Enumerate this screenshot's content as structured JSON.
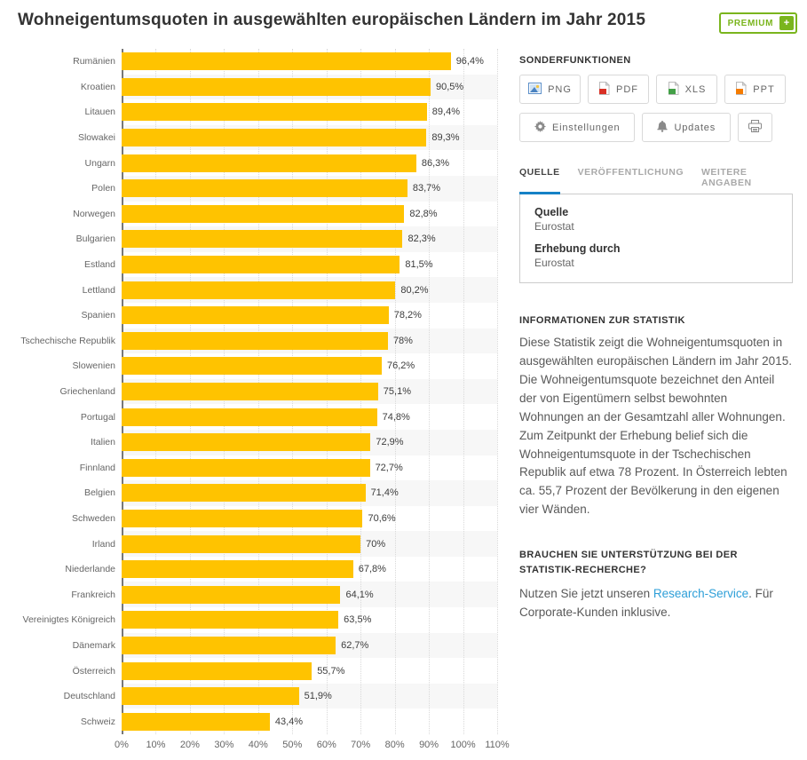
{
  "page": {
    "title": "Wohneigentumsquoten in ausgewählten europäischen Ländern im Jahr 2015",
    "premium_label": "PREMIUM",
    "premium_plus": "+"
  },
  "colors": {
    "bar": "#ffc300",
    "premium_green": "#7ab51d",
    "tab_active_underline": "#1581c6",
    "link_blue": "#2e9fd8"
  },
  "sidebar": {
    "features_header": "SONDERFUNKTIONEN",
    "download_buttons": [
      {
        "label": "PNG",
        "icon": "png-file-icon"
      },
      {
        "label": "PDF",
        "icon": "pdf-file-icon"
      },
      {
        "label": "XLS",
        "icon": "xls-file-icon"
      },
      {
        "label": "PPT",
        "icon": "ppt-file-icon"
      }
    ],
    "settings_button": "Einstellungen",
    "updates_button": "Updates",
    "print_button_icon": "printer-icon",
    "tabs": [
      {
        "label": "QUELLE",
        "active": true
      },
      {
        "label": "VERÖFFENTLICHUNG",
        "active": false
      },
      {
        "label": "WEITERE ANGABEN",
        "active": false
      }
    ],
    "source_box": {
      "source_label": "Quelle",
      "source_value": "Eurostat",
      "conducted_label": "Erhebung durch",
      "conducted_value": "Eurostat"
    },
    "info_header": "INFORMATIONEN ZUR STATISTIK",
    "info_text": "Diese Statistik zeigt die Wohneigentumsquoten in ausgewählten europäischen Ländern im Jahr 2015. Die Wohneigentumsquote bezeichnet den Anteil der von Eigentümern selbst bewohnten Wohnungen an der Gesamtzahl aller Wohnungen. Zum Zeitpunkt der Erhebung belief sich die Wohneigentumsquote in der Tschechischen Republik auf etwa 78 Prozent. In Österreich lebten ca. 55,7 Prozent der Bevölkerung in den eigenen vier Wänden.",
    "support_header": "BRAUCHEN SIE UNTERSTÜTZUNG BEI DER STATISTIK-RECHERCHE?",
    "support_text_before": "Nutzen Sie jetzt unseren ",
    "support_link": "Research-Service",
    "support_text_after": ". Für Corporate-Kunden inklusive."
  },
  "chart_data": {
    "type": "bar",
    "orientation": "horizontal",
    "title": "Wohneigentumsquoten in ausgewählten europäischen Ländern im Jahr 2015",
    "categories": [
      "Rumänien",
      "Kroatien",
      "Litauen",
      "Slowakei",
      "Ungarn",
      "Polen",
      "Norwegen",
      "Bulgarien",
      "Estland",
      "Lettland",
      "Spanien",
      "Tschechische Republik",
      "Slowenien",
      "Griechenland",
      "Portugal",
      "Italien",
      "Finnland",
      "Belgien",
      "Schweden",
      "Irland",
      "Niederlande",
      "Frankreich",
      "Vereinigtes Königreich",
      "Dänemark",
      "Österreich",
      "Deutschland",
      "Schweiz"
    ],
    "values": [
      96.4,
      90.5,
      89.4,
      89.3,
      86.3,
      83.7,
      82.8,
      82.3,
      81.5,
      80.2,
      78.2,
      78,
      76.2,
      75.1,
      74.8,
      72.9,
      72.7,
      71.4,
      70.6,
      70,
      67.8,
      64.1,
      63.5,
      62.7,
      55.7,
      51.9,
      43.4
    ],
    "value_labels": [
      "96,4%",
      "90,5%",
      "89,4%",
      "89,3%",
      "86,3%",
      "83,7%",
      "82,8%",
      "82,3%",
      "81,5%",
      "80,2%",
      "78,2%",
      "78%",
      "76,2%",
      "75,1%",
      "74,8%",
      "72,9%",
      "72,7%",
      "71,4%",
      "70,6%",
      "70%",
      "67,8%",
      "64,1%",
      "63,5%",
      "62,7%",
      "55,7%",
      "51,9%",
      "43,4%"
    ],
    "xlabel": "",
    "ylabel": "",
    "xlim": [
      0,
      110
    ],
    "x_ticks": [
      "0%",
      "10%",
      "20%",
      "30%",
      "40%",
      "50%",
      "60%",
      "70%",
      "80%",
      "90%",
      "100%",
      "110%"
    ],
    "grid": "vertical-dotted",
    "legend": "none",
    "bar_color": "#ffc300"
  }
}
